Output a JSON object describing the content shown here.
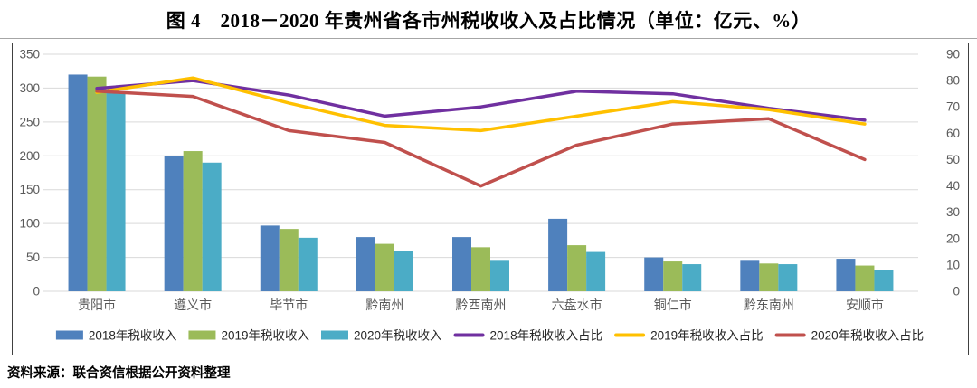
{
  "title": "图 4　2018－2020 年贵州省各市州税收收入及占比情况（单位：亿元、%）",
  "source_note": "资料来源：联合资信根据公开资料整理",
  "colors": {
    "bar_2018": "#4F81BD",
    "bar_2019": "#9BBB59",
    "bar_2020": "#4BACC6",
    "line_2018": "#7030A0",
    "line_2019": "#FFC000",
    "line_2020": "#C0504D",
    "grid": "#d9d9d9",
    "axis_text": "#595959",
    "legend_text": "#262626"
  },
  "chart_data": {
    "type": "bar",
    "subtype": "combo-bar-line-dual-axis",
    "categories": [
      "贵阳市",
      "遵义市",
      "毕节市",
      "黔南州",
      "黔西南州",
      "六盘水市",
      "铜仁市",
      "黔东南州",
      "安顺市"
    ],
    "bar_series": [
      {
        "name": "2018年税收收入",
        "color": "#4F81BD",
        "axis": "left",
        "values": [
          320,
          200,
          97,
          80,
          80,
          107,
          50,
          45,
          48
        ]
      },
      {
        "name": "2019年税收收入",
        "color": "#9BBB59",
        "axis": "left",
        "values": [
          317,
          207,
          92,
          70,
          65,
          68,
          44,
          41,
          38
        ]
      },
      {
        "name": "2020年税收收入",
        "color": "#4BACC6",
        "axis": "left",
        "values": [
          293,
          190,
          79,
          60,
          45,
          58,
          40,
          40,
          31
        ]
      }
    ],
    "line_series": [
      {
        "name": "2018年税收收入占比",
        "color": "#7030A0",
        "axis": "right",
        "values": [
          77,
          80,
          74.5,
          66.5,
          70,
          76,
          75,
          69.5,
          65
        ]
      },
      {
        "name": "2019年税收收入占比",
        "color": "#FFC000",
        "axis": "right",
        "values": [
          75.5,
          81,
          71.5,
          63,
          61,
          66.5,
          72,
          69,
          63.5
        ]
      },
      {
        "name": "2020年税收收入占比",
        "color": "#C0504D",
        "axis": "right",
        "values": [
          76,
          74,
          61,
          56.5,
          40,
          55.5,
          63.5,
          65.5,
          50
        ]
      }
    ],
    "left_axis": {
      "min": 0,
      "max": 350,
      "step": 50,
      "ticks": [
        0,
        50,
        100,
        150,
        200,
        250,
        300,
        350
      ]
    },
    "right_axis": {
      "min": 0,
      "max": 90,
      "step": 10,
      "ticks": [
        0,
        10,
        20,
        30,
        40,
        50,
        60,
        70,
        80,
        90
      ]
    },
    "grid": true,
    "legend_position": "bottom",
    "title": "图 4　2018－2020 年贵州省各市州税收收入及占比情况（单位：亿元、%）",
    "xlabel": "",
    "ylabel_left": "亿元",
    "ylabel_right": "%"
  }
}
